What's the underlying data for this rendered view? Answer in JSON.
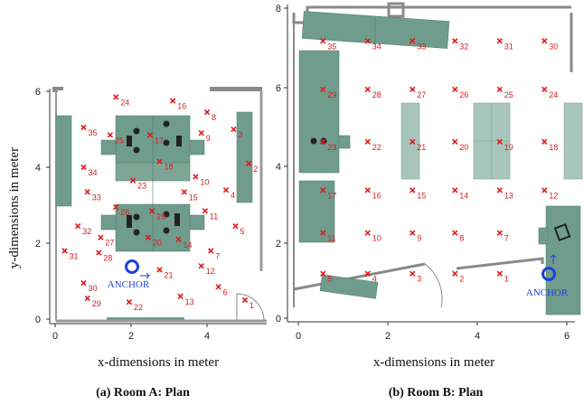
{
  "colors": {
    "furniture": "#6f9c8c",
    "furniture_light": "#a8c6bb",
    "wall": "#8a8a8a",
    "marker": "#e01a1a",
    "anchor": "#1f3fd6"
  },
  "plots": [
    {
      "id": "room-a",
      "caption": "(a) Room A: Plan",
      "xlabel": "x-dimensions in meter",
      "ylabel": "y-dimensions in meter",
      "xticks": [
        "0",
        "2",
        "4"
      ],
      "yticks": [
        "0",
        "2",
        "4",
        "6"
      ],
      "anchor_label": "ANCHOR",
      "anchor_icon": "arrow-right",
      "points": [
        {
          "n": "1",
          "x": 5.0,
          "y": 0.5
        },
        {
          "n": "2",
          "x": 5.1,
          "y": 4.1
        },
        {
          "n": "3",
          "x": 4.7,
          "y": 5.0
        },
        {
          "n": "4",
          "x": 4.5,
          "y": 3.4
        },
        {
          "n": "5",
          "x": 4.75,
          "y": 2.45
        },
        {
          "n": "6",
          "x": 4.3,
          "y": 0.85
        },
        {
          "n": "7",
          "x": 4.1,
          "y": 1.8
        },
        {
          "n": "8",
          "x": 4.0,
          "y": 5.45
        },
        {
          "n": "9",
          "x": 3.85,
          "y": 4.9
        },
        {
          "n": "10",
          "x": 3.7,
          "y": 3.75
        },
        {
          "n": "11",
          "x": 3.95,
          "y": 2.85
        },
        {
          "n": "12",
          "x": 3.85,
          "y": 1.4
        },
        {
          "n": "13",
          "x": 3.3,
          "y": 0.6
        },
        {
          "n": "14",
          "x": 3.25,
          "y": 2.1
        },
        {
          "n": "15",
          "x": 3.4,
          "y": 3.35
        },
        {
          "n": "16",
          "x": 3.1,
          "y": 5.75
        },
        {
          "n": "17",
          "x": 2.5,
          "y": 4.85
        },
        {
          "n": "18",
          "x": 2.75,
          "y": 4.15
        },
        {
          "n": "19",
          "x": 2.55,
          "y": 2.85
        },
        {
          "n": "20",
          "x": 2.45,
          "y": 2.15
        },
        {
          "n": "21",
          "x": 2.75,
          "y": 1.3
        },
        {
          "n": "22",
          "x": 1.95,
          "y": 0.45
        },
        {
          "n": "23",
          "x": 2.05,
          "y": 3.65
        },
        {
          "n": "24",
          "x": 1.6,
          "y": 5.85
        },
        {
          "n": "25",
          "x": 1.45,
          "y": 4.85
        },
        {
          "n": "26",
          "x": 1.6,
          "y": 2.95
        },
        {
          "n": "27",
          "x": 1.2,
          "y": 2.15
        },
        {
          "n": "28",
          "x": 1.15,
          "y": 1.75
        },
        {
          "n": "29",
          "x": 0.85,
          "y": 0.55
        },
        {
          "n": "30",
          "x": 0.75,
          "y": 0.95
        },
        {
          "n": "31",
          "x": 0.25,
          "y": 1.8
        },
        {
          "n": "32",
          "x": 0.6,
          "y": 2.45
        },
        {
          "n": "33",
          "x": 0.85,
          "y": 3.35
        },
        {
          "n": "34",
          "x": 0.75,
          "y": 4.0
        },
        {
          "n": "35",
          "x": 0.75,
          "y": 5.05
        }
      ]
    },
    {
      "id": "room-b",
      "caption": "(b) Room B: Plan",
      "xlabel": "x-dimensions in meter",
      "xticks": [
        "0",
        "2",
        "4",
        "6"
      ],
      "yticks": [
        "0",
        "2",
        "4",
        "6",
        "8"
      ],
      "anchor_label": "ANCHOR",
      "anchor_icon": "arrow-up",
      "points": [
        {
          "n": "1",
          "x": 4.5,
          "y": 1.15
        },
        {
          "n": "2",
          "x": 3.5,
          "y": 1.15
        },
        {
          "n": "3",
          "x": 2.55,
          "y": 1.15
        },
        {
          "n": "4",
          "x": 1.55,
          "y": 1.15
        },
        {
          "n": "5",
          "x": 0.55,
          "y": 1.15
        },
        {
          "n": "7",
          "x": 4.5,
          "y": 2.2
        },
        {
          "n": "8",
          "x": 3.5,
          "y": 2.2
        },
        {
          "n": "9",
          "x": 2.55,
          "y": 2.2
        },
        {
          "n": "10",
          "x": 1.55,
          "y": 2.2
        },
        {
          "n": "11",
          "x": 0.55,
          "y": 2.2
        },
        {
          "n": "12",
          "x": 5.5,
          "y": 3.3
        },
        {
          "n": "13",
          "x": 4.5,
          "y": 3.3
        },
        {
          "n": "14",
          "x": 3.5,
          "y": 3.3
        },
        {
          "n": "15",
          "x": 2.55,
          "y": 3.3
        },
        {
          "n": "16",
          "x": 1.55,
          "y": 3.3
        },
        {
          "n": "17",
          "x": 0.55,
          "y": 3.3
        },
        {
          "n": "18",
          "x": 5.5,
          "y": 4.55
        },
        {
          "n": "19",
          "x": 4.5,
          "y": 4.55
        },
        {
          "n": "20",
          "x": 3.5,
          "y": 4.55
        },
        {
          "n": "21",
          "x": 2.55,
          "y": 4.55
        },
        {
          "n": "22",
          "x": 1.55,
          "y": 4.55
        },
        {
          "n": "23",
          "x": 0.55,
          "y": 4.55
        },
        {
          "n": "24",
          "x": 5.5,
          "y": 5.9
        },
        {
          "n": "25",
          "x": 4.5,
          "y": 5.9
        },
        {
          "n": "26",
          "x": 3.5,
          "y": 5.9
        },
        {
          "n": "27",
          "x": 2.55,
          "y": 5.9
        },
        {
          "n": "28",
          "x": 1.55,
          "y": 5.9
        },
        {
          "n": "29",
          "x": 0.55,
          "y": 5.9
        },
        {
          "n": "30",
          "x": 5.5,
          "y": 7.15
        },
        {
          "n": "31",
          "x": 4.5,
          "y": 7.15
        },
        {
          "n": "32",
          "x": 3.5,
          "y": 7.15
        },
        {
          "n": "33",
          "x": 2.55,
          "y": 7.15
        },
        {
          "n": "34",
          "x": 1.55,
          "y": 7.15
        },
        {
          "n": "35",
          "x": 0.55,
          "y": 7.15
        }
      ]
    }
  ]
}
